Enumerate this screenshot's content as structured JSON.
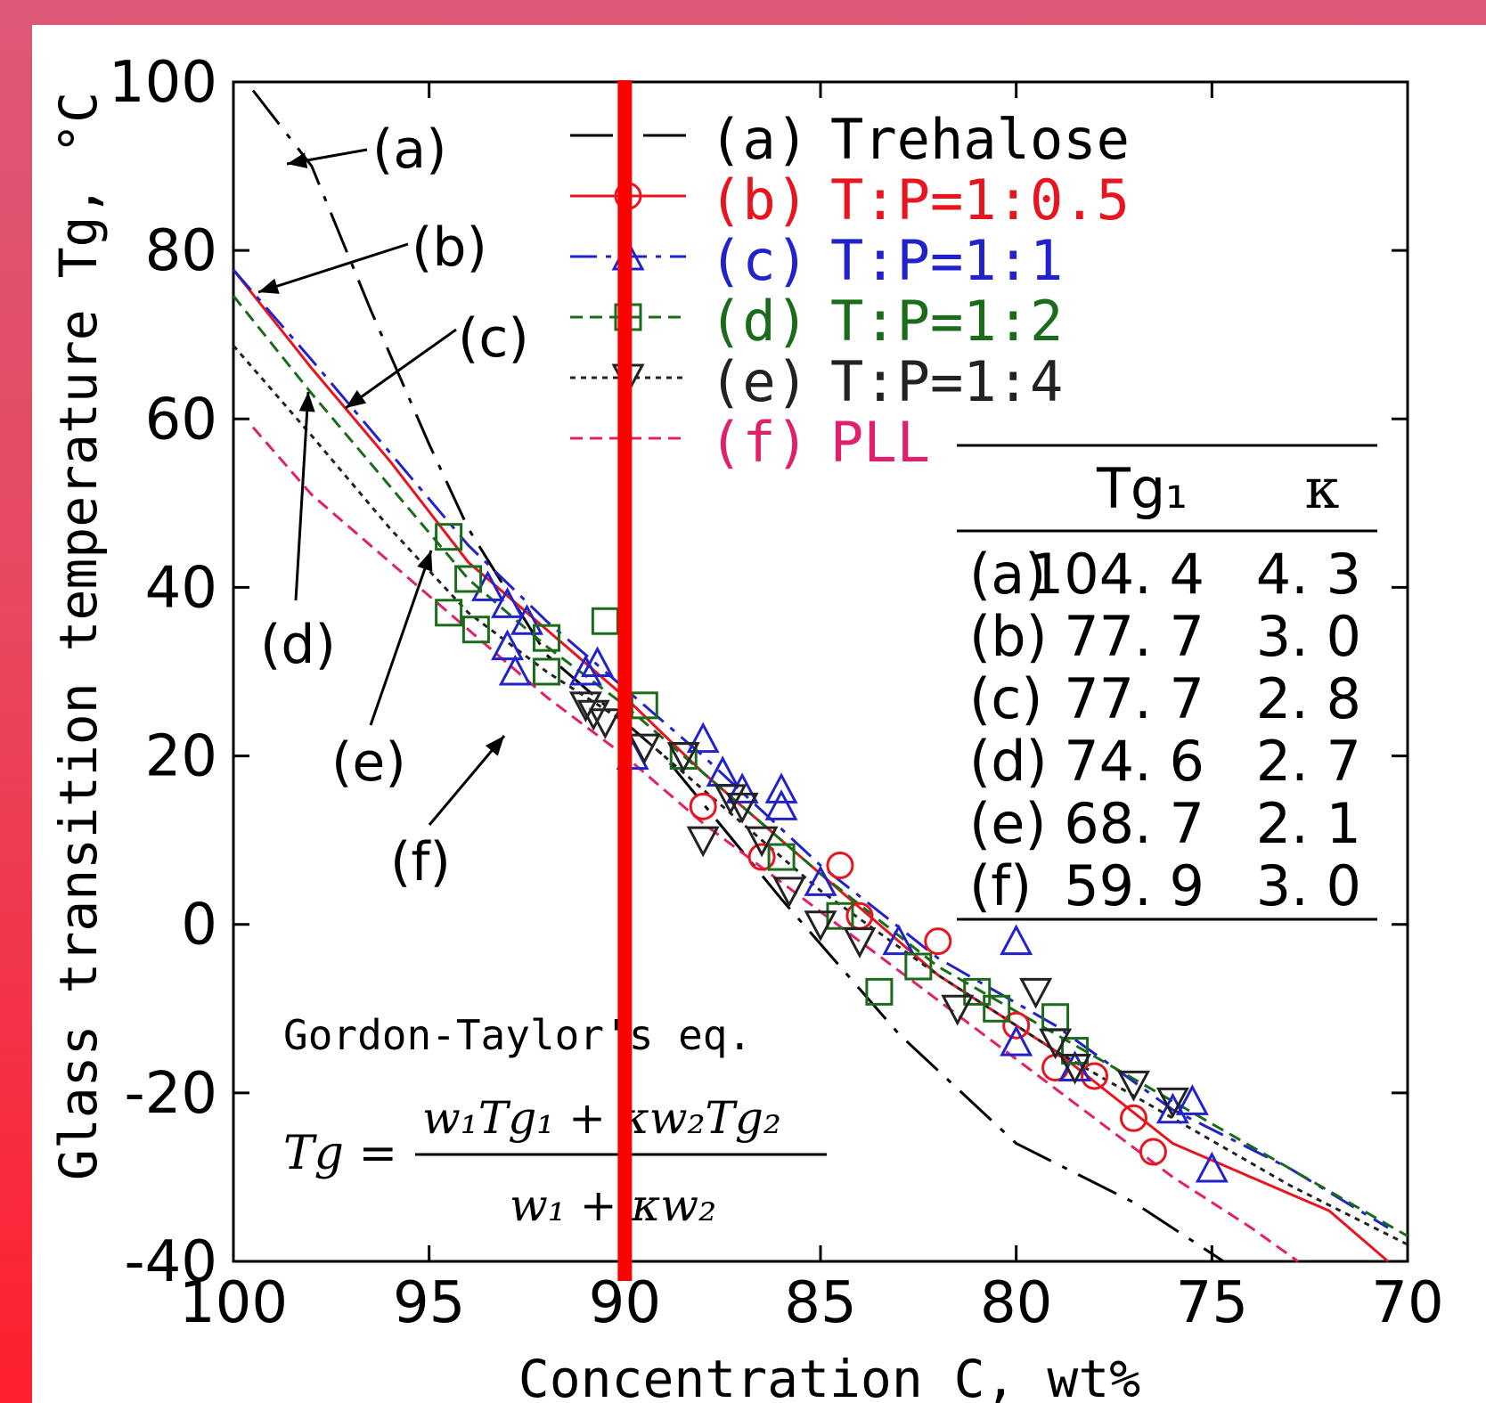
{
  "chart_data": {
    "type": "line",
    "title": "",
    "xlabel": "Concentration C, wt%",
    "ylabel": "Glass transition temperature Tg, °C",
    "xlim": [
      100,
      70
    ],
    "ylim": [
      -40,
      100
    ],
    "x_ticks": [
      "100",
      "95",
      "90",
      "85",
      "80",
      "75",
      "70"
    ],
    "y_ticks": [
      "100",
      "80",
      "60",
      "40",
      "20",
      "0",
      "-20",
      "-40"
    ],
    "grid": false,
    "legend_position": "top-center",
    "series": [
      {
        "label_tag": "(a)",
        "name": "Trehalose",
        "color": "#000000",
        "dash": "long",
        "marker": "none",
        "line": [
          [
            99.5,
            99
          ],
          [
            98,
            90
          ],
          [
            96.5,
            73
          ],
          [
            95,
            57
          ],
          [
            94,
            47
          ],
          [
            92,
            32
          ],
          [
            89,
            20
          ],
          [
            86,
            3
          ],
          [
            83,
            -13
          ],
          [
            80,
            -26
          ],
          [
            77,
            -33
          ],
          [
            74.7,
            -40
          ]
        ],
        "points": []
      },
      {
        "label_tag": "(b)",
        "name": "T:P=1:0.5",
        "color": "#e8141e",
        "dash": "solid",
        "marker": "circle",
        "line": [
          [
            100,
            77.7
          ],
          [
            98,
            66
          ],
          [
            96,
            55
          ],
          [
            94,
            43
          ],
          [
            92,
            35
          ],
          [
            90,
            27
          ],
          [
            88,
            18
          ],
          [
            85,
            6
          ],
          [
            82,
            -6
          ],
          [
            79,
            -15
          ],
          [
            76,
            -26
          ],
          [
            72,
            -34
          ],
          [
            70.5,
            -40
          ]
        ],
        "points": [
          [
            88,
            14
          ],
          [
            86.5,
            8
          ],
          [
            84.5,
            7
          ],
          [
            84,
            1
          ],
          [
            82,
            -2
          ],
          [
            80,
            -12
          ],
          [
            79,
            -17
          ],
          [
            78,
            -18
          ],
          [
            77,
            -23
          ],
          [
            76.5,
            -27
          ]
        ]
      },
      {
        "label_tag": "(c)",
        "name": "T:P=1:1",
        "color": "#2222cc",
        "dash": "dashdot",
        "marker": "triangle-up",
        "line": [
          [
            100,
            77.7
          ],
          [
            98,
            67
          ],
          [
            96,
            56
          ],
          [
            94,
            45
          ],
          [
            92,
            36
          ],
          [
            90,
            28
          ],
          [
            88,
            20
          ],
          [
            85,
            7
          ],
          [
            82,
            -4
          ],
          [
            79,
            -12
          ],
          [
            76,
            -22
          ],
          [
            73,
            -29
          ],
          [
            70.5,
            -36
          ]
        ],
        "points": [
          [
            93.5,
            40
          ],
          [
            93,
            38
          ],
          [
            93,
            33
          ],
          [
            92.8,
            30
          ],
          [
            92.5,
            36
          ],
          [
            91,
            30
          ],
          [
            90.7,
            31
          ],
          [
            89.8,
            20
          ],
          [
            88,
            22
          ],
          [
            87.5,
            18
          ],
          [
            87,
            16
          ],
          [
            86,
            16
          ],
          [
            86,
            14
          ],
          [
            85,
            5
          ],
          [
            83,
            -2
          ],
          [
            80,
            -2
          ],
          [
            80,
            -14
          ],
          [
            78.5,
            -17
          ],
          [
            76,
            -22
          ],
          [
            75.5,
            -21
          ],
          [
            75,
            -29
          ]
        ]
      },
      {
        "label_tag": "(d)",
        "name": "T:P=1:2",
        "color": "#1a6b1a",
        "dash": "dashed",
        "marker": "square",
        "line": [
          [
            100,
            74.6
          ],
          [
            98,
            63
          ],
          [
            96,
            52
          ],
          [
            94,
            41
          ],
          [
            92,
            33
          ],
          [
            90,
            26
          ],
          [
            88,
            18
          ],
          [
            85,
            6
          ],
          [
            82,
            -5
          ],
          [
            79,
            -13
          ],
          [
            76,
            -21
          ],
          [
            73,
            -29
          ],
          [
            70,
            -37
          ]
        ],
        "points": [
          [
            94.5,
            46
          ],
          [
            94,
            41
          ],
          [
            94.5,
            37
          ],
          [
            93.8,
            35
          ],
          [
            92,
            34
          ],
          [
            92,
            30
          ],
          [
            90.5,
            36
          ],
          [
            89.5,
            26
          ],
          [
            88.5,
            20
          ],
          [
            86,
            8
          ],
          [
            84.5,
            1
          ],
          [
            83.5,
            -8
          ],
          [
            82.5,
            -5
          ],
          [
            81,
            -8
          ],
          [
            80.5,
            -10
          ],
          [
            79,
            -11
          ],
          [
            78.5,
            -15
          ]
        ]
      },
      {
        "label_tag": "(e)",
        "name": "T:P=1:4",
        "color": "#222222",
        "dash": "dotted",
        "marker": "triangle-down",
        "line": [
          [
            100,
            68.7
          ],
          [
            98,
            58
          ],
          [
            96,
            47
          ],
          [
            94,
            37
          ],
          [
            92,
            30
          ],
          [
            90,
            24
          ],
          [
            88,
            16
          ],
          [
            85,
            4
          ],
          [
            82,
            -6
          ],
          [
            79,
            -15
          ],
          [
            76,
            -23
          ],
          [
            73,
            -31
          ],
          [
            70,
            -38
          ]
        ],
        "points": [
          [
            91,
            26
          ],
          [
            90.8,
            25
          ],
          [
            90.5,
            24
          ],
          [
            89.5,
            21
          ],
          [
            88.5,
            20
          ],
          [
            88,
            10
          ],
          [
            87.3,
            15
          ],
          [
            87,
            14
          ],
          [
            86.5,
            10
          ],
          [
            85.8,
            4
          ],
          [
            85,
            0
          ],
          [
            84,
            -2
          ],
          [
            81.5,
            -10
          ],
          [
            79.5,
            -8
          ],
          [
            79,
            -14
          ],
          [
            78.5,
            -17
          ],
          [
            77,
            -19
          ],
          [
            76,
            -21
          ]
        ]
      },
      {
        "label_tag": "(f)",
        "name": "PLL",
        "color": "#e0206a",
        "dash": "dashed",
        "marker": "none",
        "line": [
          [
            99.5,
            59
          ],
          [
            98,
            51
          ],
          [
            96,
            43
          ],
          [
            94,
            35
          ],
          [
            92,
            27
          ],
          [
            90,
            20
          ],
          [
            88,
            12
          ],
          [
            86,
            5
          ],
          [
            84,
            -2
          ],
          [
            82,
            -9
          ],
          [
            80,
            -16
          ],
          [
            78,
            -23
          ],
          [
            76,
            -30
          ],
          [
            74,
            -36
          ],
          [
            72.8,
            -40
          ]
        ],
        "points": []
      }
    ],
    "table": {
      "headers": [
        "Tg₁",
        "κ"
      ],
      "rows": [
        {
          "label": "(a)",
          "tg1": "104. 4",
          "k": "4. 3"
        },
        {
          "label": "(b)",
          "tg1": "77. 7",
          "k": "3. 0"
        },
        {
          "label": "(c)",
          "tg1": "77. 7",
          "k": "2. 8"
        },
        {
          "label": "(d)",
          "tg1": "74. 6",
          "k": "2. 7"
        },
        {
          "label": "(e)",
          "tg1": "68. 7",
          "k": "2. 1"
        },
        {
          "label": "(f)",
          "tg1": "59. 9",
          "k": "3. 0"
        }
      ]
    },
    "annotations": [
      {
        "tag": "(a)"
      },
      {
        "tag": "(b)"
      },
      {
        "tag": "(c)"
      },
      {
        "tag": "(d)"
      },
      {
        "tag": "(e)"
      },
      {
        "tag": "(f)"
      }
    ],
    "equation": {
      "caption": "Gordon-Taylor's eq.",
      "lhs": "Tg =",
      "numerator": "w₁Tg₁ + κw₂Tg₂",
      "denominator": "w₁ + κw₂"
    },
    "highlight_line": {
      "x": 90,
      "color": "#ff0000"
    }
  }
}
